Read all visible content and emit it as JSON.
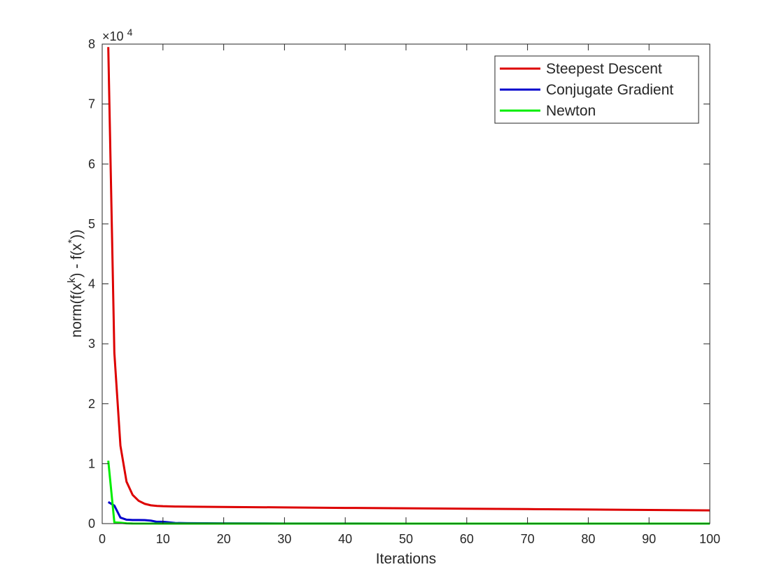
{
  "chart_data": {
    "type": "line",
    "title": "",
    "xlabel": "Iterations",
    "ylabel": {
      "base": "norm(f(x",
      "sup1": "k",
      "mid": ") - f(x",
      "sup2": "*",
      "end": "))"
    },
    "exponent": {
      "base": "×10",
      "power": "4"
    },
    "xlim": [
      0,
      100
    ],
    "ylim": [
      0,
      80000
    ],
    "xticks": [
      0,
      10,
      20,
      30,
      40,
      50,
      60,
      70,
      80,
      90,
      100
    ],
    "yticks": [
      0,
      10000,
      20000,
      30000,
      40000,
      50000,
      60000,
      70000,
      80000
    ],
    "yticklabels": [
      "0",
      "1",
      "2",
      "3",
      "4",
      "5",
      "6",
      "7",
      "8"
    ],
    "grid": false,
    "legend_position": "top-right",
    "series": [
      {
        "name": "Steepest Descent",
        "color": "#dd0000",
        "x": [
          1,
          2,
          3,
          4,
          5,
          6,
          7,
          8,
          9,
          10,
          12,
          15,
          20,
          30,
          40,
          50,
          60,
          70,
          80,
          90,
          100
        ],
        "y": [
          79500,
          28500,
          13000,
          7000,
          4800,
          3800,
          3300,
          3050,
          2950,
          2900,
          2850,
          2820,
          2780,
          2700,
          2620,
          2550,
          2480,
          2420,
          2350,
          2280,
          2200
        ]
      },
      {
        "name": "Conjugate Gradient",
        "color": "#0000cc",
        "x": [
          1,
          2,
          3,
          4,
          5,
          6,
          7,
          8,
          9,
          10,
          11,
          12,
          14,
          20,
          30,
          40,
          50,
          60,
          70,
          80,
          90,
          100
        ],
        "y": [
          3600,
          3000,
          1000,
          650,
          600,
          600,
          580,
          500,
          300,
          300,
          200,
          100,
          80,
          50,
          20,
          10,
          5,
          3,
          2,
          1,
          1,
          0
        ]
      },
      {
        "name": "Newton",
        "color": "#00ee00",
        "x": [
          1,
          2,
          3,
          4,
          5,
          10,
          20,
          30,
          40,
          50,
          60,
          70,
          80,
          90,
          100
        ],
        "y": [
          10500,
          200,
          150,
          50,
          20,
          5,
          2,
          1,
          0,
          0,
          0,
          0,
          0,
          0,
          0
        ]
      }
    ]
  }
}
